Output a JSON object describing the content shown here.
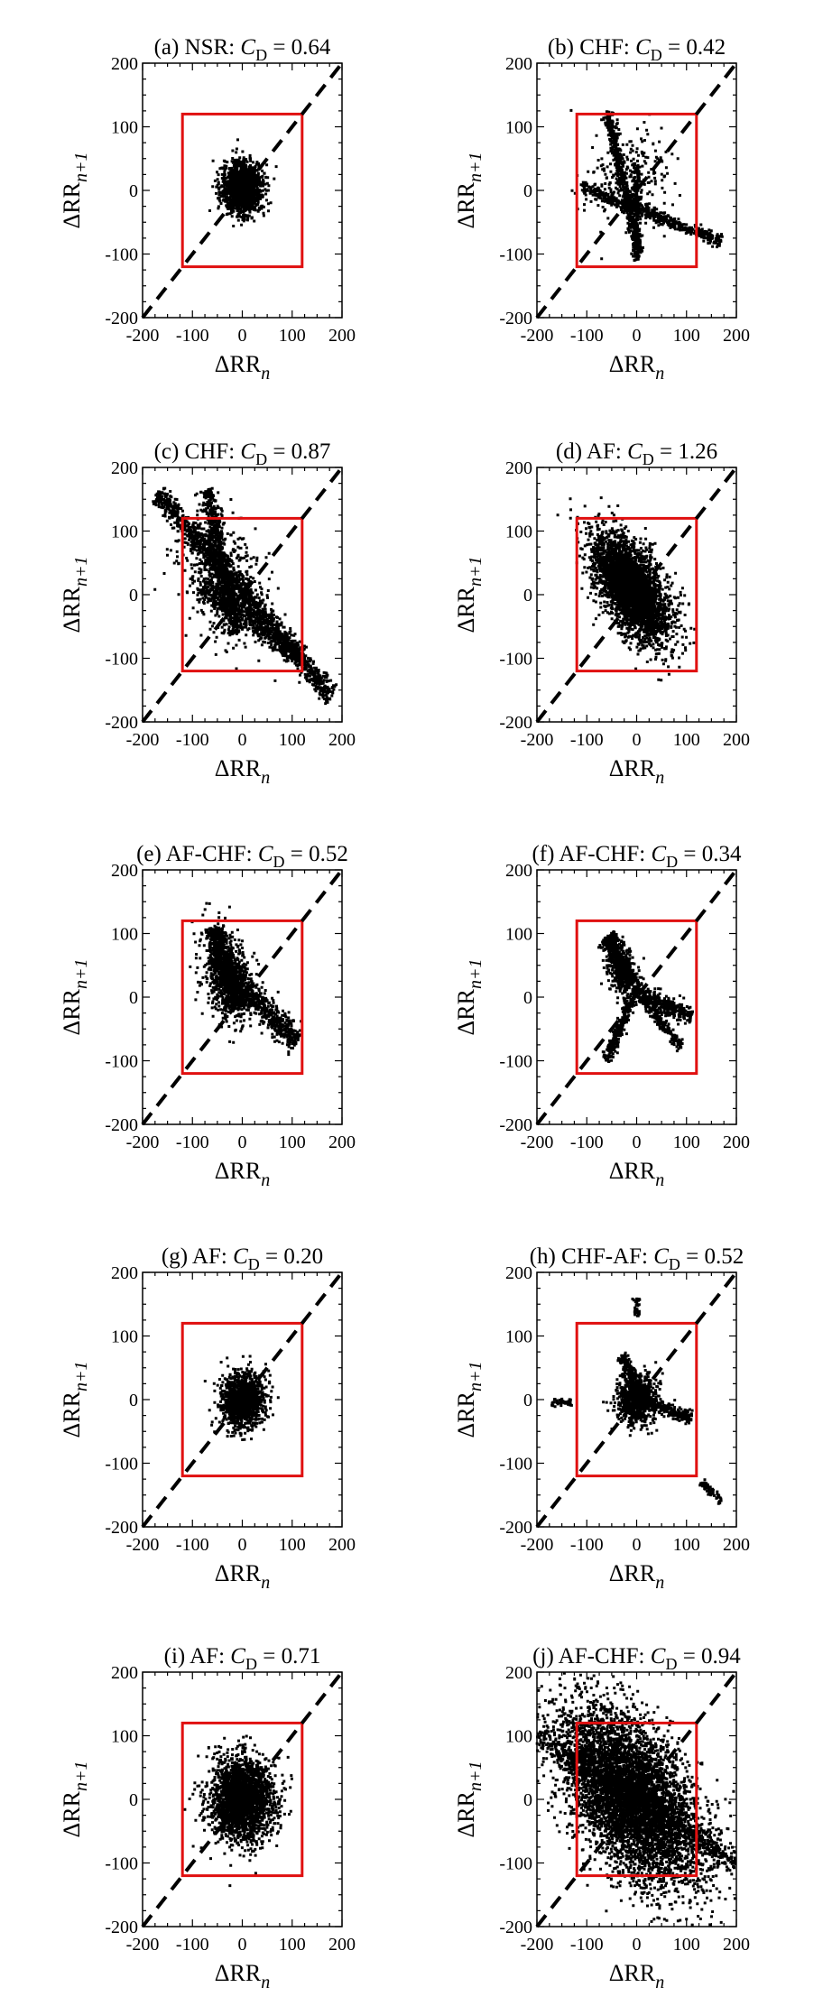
{
  "figure": {
    "axes_common": {
      "xlabel_main": "ΔRR",
      "xlabel_sub": "n",
      "ylabel_main": "ΔRR",
      "ylabel_sub": "n+1",
      "xlim": [
        -200,
        200
      ],
      "ylim": [
        -200,
        200
      ],
      "ticks": [
        -200,
        -100,
        0,
        100,
        200
      ],
      "tick_labels": [
        "-200",
        "-100",
        "0",
        "100",
        "200"
      ],
      "window": [
        -120,
        120
      ]
    },
    "colors": {
      "points": "#000000",
      "window": "#e01010",
      "identity": "#000000"
    }
  },
  "chart_data": [
    {
      "id": "a",
      "type": "scatter",
      "title_prefix": "(a) NSR: ",
      "c_main": "C",
      "c_sub": "D",
      "c_value": " = 0.64",
      "cd": 0.64,
      "xlim": [
        -200,
        200
      ],
      "ylim": [
        -200,
        200
      ],
      "xlabel": "ΔRRn",
      "ylabel": "ΔRRn+1",
      "clouds": [
        {
          "cx": 0,
          "cy": 5,
          "sx": 20,
          "sy": 20,
          "rho": 0,
          "n": 1400
        }
      ]
    },
    {
      "id": "b",
      "type": "scatter",
      "title_prefix": "(b) CHF: ",
      "c_main": "C",
      "c_sub": "D",
      "c_value": " = 0.42",
      "cd": 0.42,
      "xlim": [
        -200,
        200
      ],
      "ylim": [
        -200,
        200
      ],
      "xlabel": "ΔRRn",
      "ylabel": "ΔRRn+1",
      "lines": [
        {
          "x1": -60,
          "y1": 125,
          "x2": 5,
          "y2": -100,
          "w": 5,
          "n": 500
        },
        {
          "x1": -110,
          "y1": 5,
          "x2": 170,
          "y2": -80,
          "w": 5,
          "n": 550
        },
        {
          "x1": 0,
          "y1": 40,
          "x2": 0,
          "y2": -110,
          "w": 4,
          "n": 220
        }
      ],
      "clouds": [
        {
          "cx": -20,
          "cy": 20,
          "sx": 40,
          "sy": 40,
          "rho": 0,
          "n": 250
        }
      ]
    },
    {
      "id": "c",
      "type": "scatter",
      "title_prefix": "(c) CHF: ",
      "c_main": "C",
      "c_sub": "D",
      "c_value": " = 0.87",
      "cd": 0.87,
      "xlim": [
        -200,
        200
      ],
      "ylim": [
        -200,
        200
      ],
      "xlabel": "ΔRRn",
      "ylabel": "ΔRRn+1",
      "lines": [
        {
          "x1": -170,
          "y1": 160,
          "x2": 180,
          "y2": -160,
          "w": 9,
          "n": 1300
        },
        {
          "x1": -70,
          "y1": 165,
          "x2": -10,
          "y2": -60,
          "w": 8,
          "n": 600
        },
        {
          "x1": -80,
          "y1": 10,
          "x2": 120,
          "y2": -100,
          "w": 10,
          "n": 500
        }
      ],
      "clouds": [
        {
          "cx": -40,
          "cy": 20,
          "sx": 45,
          "sy": 50,
          "rho": -0.4,
          "n": 600
        }
      ]
    },
    {
      "id": "d",
      "type": "scatter",
      "title_prefix": "(d) AF: ",
      "c_main": "C",
      "c_sub": "D",
      "c_value": " = 1.26",
      "cd": 1.26,
      "xlim": [
        -200,
        200
      ],
      "ylim": [
        -200,
        200
      ],
      "xlabel": "ΔRRn",
      "ylabel": "ΔRRn+1",
      "clouds": [
        {
          "cx": -10,
          "cy": 10,
          "sx": 38,
          "sy": 42,
          "rho": -0.6,
          "n": 3500
        }
      ]
    },
    {
      "id": "e",
      "type": "scatter",
      "title_prefix": "(e) AF-CHF: ",
      "c_main": "C",
      "c_sub": "D",
      "c_value": " = 0.52",
      "cd": 0.52,
      "xlim": [
        -200,
        200
      ],
      "ylim": [
        -200,
        200
      ],
      "xlabel": "ΔRRn",
      "ylabel": "ΔRRn+1",
      "lines": [
        {
          "x1": -30,
          "y1": 40,
          "x2": 110,
          "y2": -70,
          "w": 10,
          "n": 600
        },
        {
          "x1": -60,
          "y1": 110,
          "x2": -10,
          "y2": -20,
          "w": 10,
          "n": 600
        }
      ],
      "clouds": [
        {
          "cx": -30,
          "cy": 30,
          "sx": 25,
          "sy": 35,
          "rho": -0.3,
          "n": 700
        }
      ]
    },
    {
      "id": "f",
      "type": "scatter",
      "title_prefix": "(f) AF-CHF: ",
      "c_main": "C",
      "c_sub": "D",
      "c_value": " = 0.34",
      "cd": 0.34,
      "xlim": [
        -200,
        200
      ],
      "ylim": [
        -200,
        200
      ],
      "xlabel": "ΔRRn",
      "ylabel": "ΔRRn+1",
      "lines": [
        {
          "x1": -60,
          "y1": 95,
          "x2": -10,
          "y2": 20,
          "w": 9,
          "n": 450
        },
        {
          "x1": -10,
          "y1": 10,
          "x2": 110,
          "y2": -30,
          "w": 7,
          "n": 350
        },
        {
          "x1": -10,
          "y1": 0,
          "x2": -60,
          "y2": -100,
          "w": 5,
          "n": 250
        },
        {
          "x1": 10,
          "y1": 0,
          "x2": 90,
          "y2": -80,
          "w": 5,
          "n": 200
        }
      ],
      "clouds": [
        {
          "cx": -30,
          "cy": 40,
          "sx": 15,
          "sy": 20,
          "rho": -0.3,
          "n": 300
        }
      ]
    },
    {
      "id": "g",
      "type": "scatter",
      "title_prefix": "(g) AF: ",
      "c_main": "C",
      "c_sub": "D",
      "c_value": " = 0.20",
      "cd": 0.2,
      "xlim": [
        -200,
        200
      ],
      "ylim": [
        -200,
        200
      ],
      "xlabel": "ΔRRn",
      "ylabel": "ΔRRn+1",
      "clouds": [
        {
          "cx": 0,
          "cy": 0,
          "sx": 22,
          "sy": 22,
          "rho": 0,
          "n": 1200
        }
      ]
    },
    {
      "id": "h",
      "type": "scatter",
      "title_prefix": "(h) CHF-AF: ",
      "c_main": "C",
      "c_sub": "D",
      "c_value": " = 0.52",
      "cd": 0.52,
      "xlim": [
        -200,
        200
      ],
      "ylim": [
        -200,
        200
      ],
      "xlabel": "ΔRRn",
      "ylabel": "ΔRRn+1",
      "lines": [
        {
          "x1": -30,
          "y1": 70,
          "x2": 20,
          "y2": -10,
          "w": 5,
          "n": 300
        },
        {
          "x1": 0,
          "y1": 0,
          "x2": 110,
          "y2": -30,
          "w": 5,
          "n": 250
        },
        {
          "x1": 130,
          "y1": -130,
          "x2": 170,
          "y2": -160,
          "w": 3,
          "n": 60
        },
        {
          "x1": -170,
          "y1": -5,
          "x2": -130,
          "y2": -5,
          "w": 3,
          "n": 50
        },
        {
          "x1": 0,
          "y1": 130,
          "x2": 0,
          "y2": 160,
          "w": 3,
          "n": 40
        }
      ],
      "clouds": [
        {
          "cx": 0,
          "cy": 0,
          "sx": 20,
          "sy": 20,
          "rho": 0,
          "n": 700
        }
      ]
    },
    {
      "id": "i",
      "type": "scatter",
      "title_prefix": "(i) AF: ",
      "c_main": "C",
      "c_sub": "D",
      "c_value": " = 0.71",
      "cd": 0.71,
      "xlim": [
        -200,
        200
      ],
      "ylim": [
        -200,
        200
      ],
      "xlabel": "ΔRRn",
      "ylabel": "ΔRRn+1",
      "clouds": [
        {
          "cx": 0,
          "cy": 0,
          "sx": 32,
          "sy": 32,
          "rho": 0,
          "n": 2300
        }
      ]
    },
    {
      "id": "j",
      "type": "scatter",
      "title_prefix": "(j) AF-CHF: ",
      "c_main": "C",
      "c_sub": "D",
      "c_value": " = 0.94",
      "cd": 0.94,
      "xlim": [
        -200,
        200
      ],
      "ylim": [
        -200,
        200
      ],
      "xlabel": "ΔRRn",
      "ylabel": "ΔRRn+1",
      "lines": [
        {
          "x1": -200,
          "y1": 100,
          "x2": 200,
          "y2": -100,
          "w": 10,
          "n": 700
        }
      ],
      "clouds": [
        {
          "cx": -10,
          "cy": 5,
          "sx": 70,
          "sy": 70,
          "rho": -0.55,
          "n": 5500
        }
      ]
    }
  ]
}
